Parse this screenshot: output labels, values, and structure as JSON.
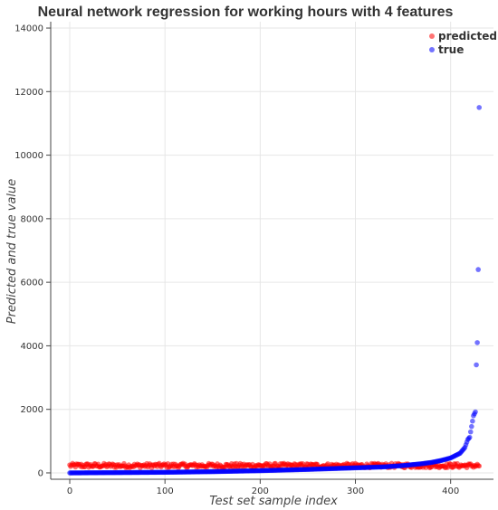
{
  "chart_data": {
    "type": "scatter",
    "title": "Neural network regression for working hours with 4 features",
    "xlabel": "Test set sample index",
    "ylabel": "Predicted and true value",
    "xlim": [
      -20,
      445
    ],
    "ylim": [
      -200,
      14200
    ],
    "x_ticks": [
      0,
      100,
      200,
      300,
      400
    ],
    "y_ticks": [
      0,
      2000,
      4000,
      6000,
      8000,
      10000,
      12000,
      14000
    ],
    "grid": true,
    "legend_position": "top-right",
    "n_points": 431,
    "series": [
      {
        "name": "predicted",
        "color": "#ff0000",
        "description_values": "approximately constant around 150-350 for all indices 0-430",
        "mean": 230,
        "spread": 70
      },
      {
        "name": "true",
        "color": "#0000ff",
        "description_values": "sorted ascending",
        "values_at_index": [
          [
            0,
            0
          ],
          [
            50,
            10
          ],
          [
            100,
            20
          ],
          [
            150,
            40
          ],
          [
            200,
            70
          ],
          [
            250,
            110
          ],
          [
            300,
            160
          ],
          [
            330,
            190
          ],
          [
            350,
            230
          ],
          [
            370,
            290
          ],
          [
            380,
            330
          ],
          [
            390,
            390
          ],
          [
            400,
            470
          ],
          [
            410,
            620
          ],
          [
            415,
            800
          ],
          [
            418,
            1050
          ],
          [
            420,
            1120
          ],
          [
            424,
            1800
          ],
          [
            426,
            1920
          ],
          [
            427,
            3400
          ],
          [
            428,
            4100
          ],
          [
            429,
            6400
          ],
          [
            430,
            11500
          ]
        ]
      }
    ]
  }
}
